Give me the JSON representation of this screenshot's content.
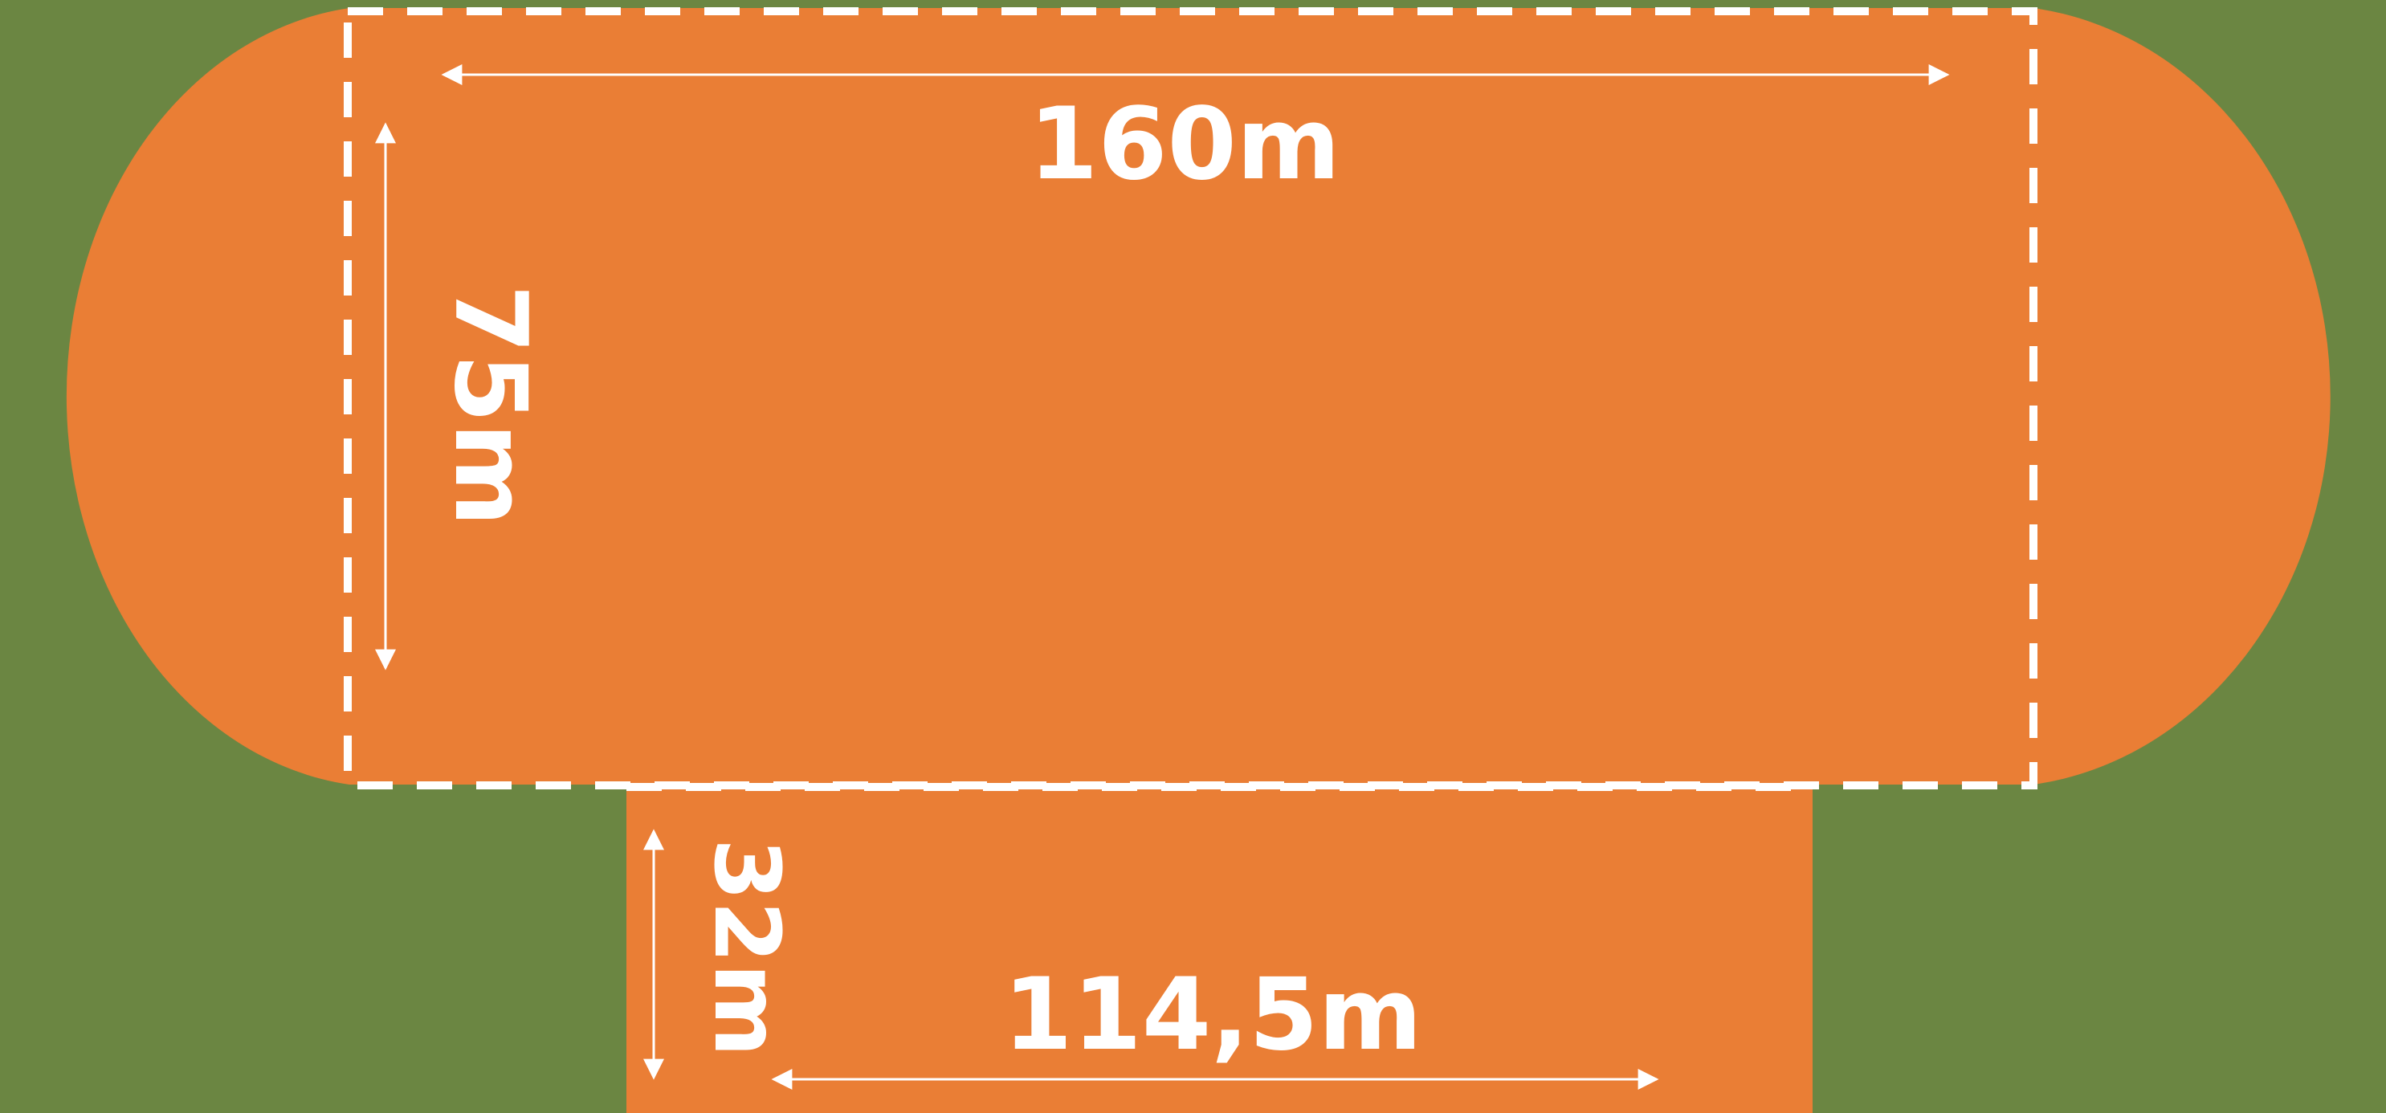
{
  "colors": {
    "background": "#6b8642",
    "surface": "#ea7e35",
    "markings": "#ffffff"
  },
  "dimensions": {
    "main_length": "160m",
    "main_width": "75m",
    "extension_length": "114,5m",
    "extension_width": "32m"
  }
}
